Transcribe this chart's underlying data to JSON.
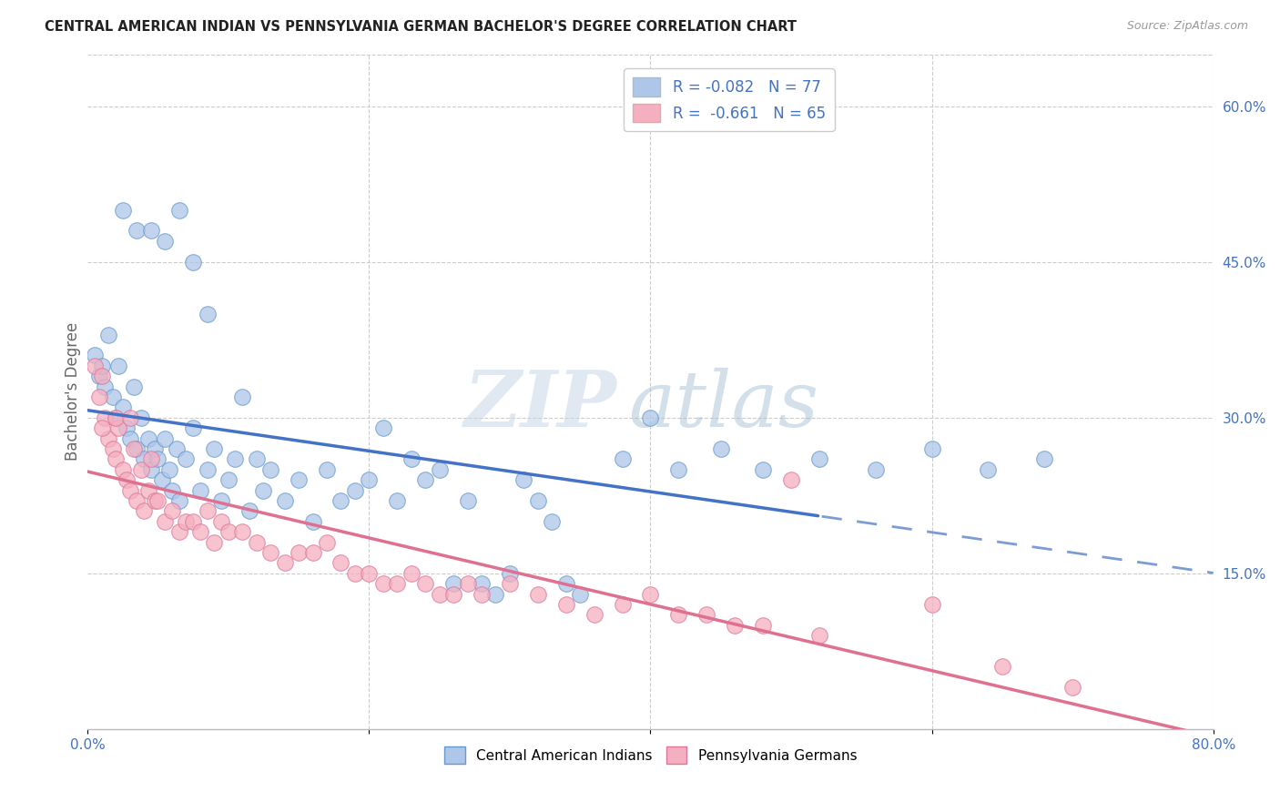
{
  "title": "CENTRAL AMERICAN INDIAN VS PENNSYLVANIA GERMAN BACHELOR'S DEGREE CORRELATION CHART",
  "source": "Source: ZipAtlas.com",
  "ylabel": "Bachelor's Degree",
  "xlim": [
    0,
    0.8
  ],
  "ylim": [
    0,
    0.65
  ],
  "x_ticks": [
    0.0,
    0.2,
    0.4,
    0.6,
    0.8
  ],
  "x_tick_labels": [
    "0.0%",
    "",
    "",
    "",
    "80.0%"
  ],
  "y_ticks_right": [
    0.15,
    0.3,
    0.45,
    0.6
  ],
  "y_tick_right_labels": [
    "15.0%",
    "30.0%",
    "45.0%",
    "60.0%"
  ],
  "legend_blue_label": "R = -0.082   N = 77",
  "legend_pink_label": "R =  -0.661   N = 65",
  "legend_bottom_blue": "Central American Indians",
  "legend_bottom_pink": "Pennsylvania Germans",
  "blue_color": "#aec6e8",
  "blue_edge_color": "#6699cc",
  "blue_line_color": "#4472c4",
  "pink_color": "#f4afc0",
  "pink_edge_color": "#dd7799",
  "pink_line_color": "#e07090",
  "watermark_zip": "ZIP",
  "watermark_atlas": "atlas",
  "background_color": "#ffffff",
  "grid_color": "#cccccc",
  "blue_scatter_x": [
    0.005,
    0.008,
    0.01,
    0.012,
    0.015,
    0.018,
    0.02,
    0.022,
    0.025,
    0.028,
    0.03,
    0.033,
    0.035,
    0.038,
    0.04,
    0.043,
    0.045,
    0.048,
    0.05,
    0.053,
    0.055,
    0.058,
    0.06,
    0.063,
    0.065,
    0.07,
    0.075,
    0.08,
    0.085,
    0.09,
    0.095,
    0.1,
    0.105,
    0.11,
    0.115,
    0.12,
    0.125,
    0.13,
    0.14,
    0.15,
    0.16,
    0.17,
    0.18,
    0.19,
    0.2,
    0.21,
    0.22,
    0.23,
    0.24,
    0.25,
    0.26,
    0.27,
    0.28,
    0.29,
    0.3,
    0.31,
    0.32,
    0.33,
    0.34,
    0.35,
    0.38,
    0.4,
    0.42,
    0.45,
    0.48,
    0.52,
    0.56,
    0.6,
    0.64,
    0.68,
    0.025,
    0.035,
    0.045,
    0.055,
    0.065,
    0.075,
    0.085
  ],
  "blue_scatter_y": [
    0.36,
    0.34,
    0.35,
    0.33,
    0.38,
    0.32,
    0.3,
    0.35,
    0.31,
    0.29,
    0.28,
    0.33,
    0.27,
    0.3,
    0.26,
    0.28,
    0.25,
    0.27,
    0.26,
    0.24,
    0.28,
    0.25,
    0.23,
    0.27,
    0.22,
    0.26,
    0.29,
    0.23,
    0.25,
    0.27,
    0.22,
    0.24,
    0.26,
    0.32,
    0.21,
    0.26,
    0.23,
    0.25,
    0.22,
    0.24,
    0.2,
    0.25,
    0.22,
    0.23,
    0.24,
    0.29,
    0.22,
    0.26,
    0.24,
    0.25,
    0.14,
    0.22,
    0.14,
    0.13,
    0.15,
    0.24,
    0.22,
    0.2,
    0.14,
    0.13,
    0.26,
    0.3,
    0.25,
    0.27,
    0.25,
    0.26,
    0.25,
    0.27,
    0.25,
    0.26,
    0.5,
    0.48,
    0.48,
    0.47,
    0.5,
    0.45,
    0.4
  ],
  "pink_scatter_x": [
    0.005,
    0.008,
    0.01,
    0.012,
    0.015,
    0.018,
    0.02,
    0.022,
    0.025,
    0.028,
    0.03,
    0.033,
    0.035,
    0.038,
    0.04,
    0.043,
    0.045,
    0.048,
    0.05,
    0.055,
    0.06,
    0.065,
    0.07,
    0.075,
    0.08,
    0.085,
    0.09,
    0.095,
    0.1,
    0.11,
    0.12,
    0.13,
    0.14,
    0.15,
    0.16,
    0.17,
    0.18,
    0.19,
    0.2,
    0.21,
    0.22,
    0.23,
    0.24,
    0.25,
    0.26,
    0.27,
    0.28,
    0.3,
    0.32,
    0.34,
    0.36,
    0.38,
    0.4,
    0.42,
    0.44,
    0.46,
    0.48,
    0.5,
    0.52,
    0.6,
    0.65,
    0.7,
    0.01,
    0.02,
    0.03
  ],
  "pink_scatter_y": [
    0.35,
    0.32,
    0.34,
    0.3,
    0.28,
    0.27,
    0.26,
    0.29,
    0.25,
    0.24,
    0.23,
    0.27,
    0.22,
    0.25,
    0.21,
    0.23,
    0.26,
    0.22,
    0.22,
    0.2,
    0.21,
    0.19,
    0.2,
    0.2,
    0.19,
    0.21,
    0.18,
    0.2,
    0.19,
    0.19,
    0.18,
    0.17,
    0.16,
    0.17,
    0.17,
    0.18,
    0.16,
    0.15,
    0.15,
    0.14,
    0.14,
    0.15,
    0.14,
    0.13,
    0.13,
    0.14,
    0.13,
    0.14,
    0.13,
    0.12,
    0.11,
    0.12,
    0.13,
    0.11,
    0.11,
    0.1,
    0.1,
    0.24,
    0.09,
    0.12,
    0.06,
    0.04,
    0.29,
    0.3,
    0.3
  ]
}
